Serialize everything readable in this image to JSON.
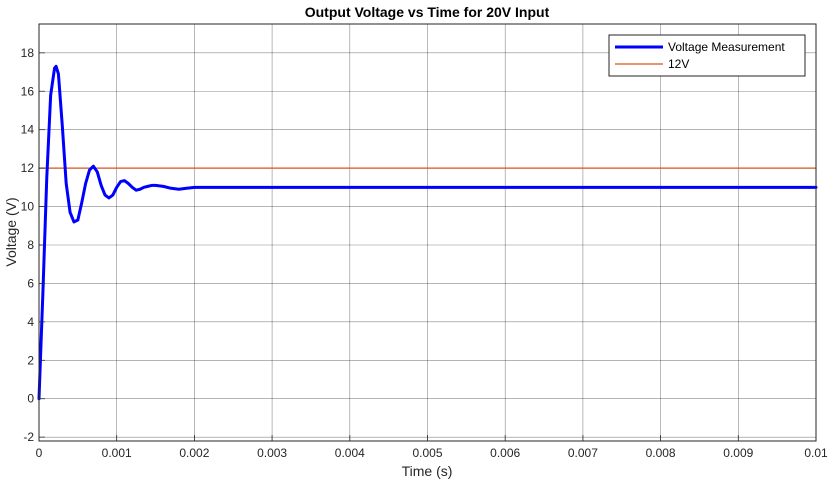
{
  "chart_data": {
    "type": "line",
    "title": "Output Voltage vs Time for 20V Input",
    "xlabel": "Time (s)",
    "ylabel": "Voltage (V)",
    "xlim": [
      0,
      0.01
    ],
    "ylim": [
      -2.2,
      19.5
    ],
    "xticks": [
      0,
      0.001,
      0.002,
      0.003,
      0.004,
      0.005,
      0.006,
      0.007,
      0.008,
      0.009,
      0.01
    ],
    "xtick_labels": [
      "0",
      "0.001",
      "0.002",
      "0.003",
      "0.004",
      "0.005",
      "0.006",
      "0.007",
      "0.008",
      "0.009",
      "0.01"
    ],
    "yticks": [
      -2,
      0,
      2,
      4,
      6,
      8,
      10,
      12,
      14,
      16,
      18
    ],
    "ytick_labels": [
      "-2",
      "0",
      "2",
      "4",
      "6",
      "8",
      "10",
      "12",
      "14",
      "16",
      "18"
    ],
    "grid": true,
    "legend": "top-right",
    "series": [
      {
        "name": "Voltage Measurement",
        "color": "#0000ff",
        "x": [
          0,
          5e-05,
          0.0001,
          0.00015,
          0.0002,
          0.00022,
          0.00025,
          0.0003,
          0.00035,
          0.0004,
          0.00045,
          0.0005,
          0.00055,
          0.0006,
          0.00065,
          0.0007,
          0.00075,
          0.0008,
          0.00085,
          0.0009,
          0.00095,
          0.001,
          0.00105,
          0.0011,
          0.00115,
          0.0012,
          0.00125,
          0.0013,
          0.00135,
          0.0014,
          0.00145,
          0.0015,
          0.0016,
          0.0017,
          0.0018,
          0.0019,
          0.002,
          0.0021,
          0.0023,
          0.0025,
          0.0027,
          0.0029,
          0.003,
          0.0035,
          0.004,
          0.0045,
          0.005,
          0.0055,
          0.006,
          0.0065,
          0.007,
          0.0075,
          0.008,
          0.0085,
          0.009,
          0.0095,
          0.01
        ],
        "y": [
          0,
          5.5,
          11.5,
          15.8,
          17.2,
          17.3,
          16.9,
          14.2,
          11.2,
          9.7,
          9.2,
          9.3,
          10.2,
          11.2,
          11.9,
          12.1,
          11.8,
          11.1,
          10.6,
          10.45,
          10.6,
          11.0,
          11.3,
          11.35,
          11.2,
          11.0,
          10.85,
          10.9,
          11.0,
          11.05,
          11.1,
          11.1,
          11.05,
          10.95,
          10.9,
          10.95,
          11.0,
          11.0,
          11.0,
          11.0,
          11.0,
          11.0,
          11.0,
          11.0,
          11.0,
          11.0,
          11.0,
          11.0,
          11.0,
          11.0,
          11.0,
          11.0,
          11.0,
          11.0,
          11.0,
          11.0,
          11.0
        ]
      },
      {
        "name": "12V",
        "color": "#d95319",
        "x": [
          0,
          0.01
        ],
        "y": [
          12,
          12
        ]
      }
    ]
  }
}
